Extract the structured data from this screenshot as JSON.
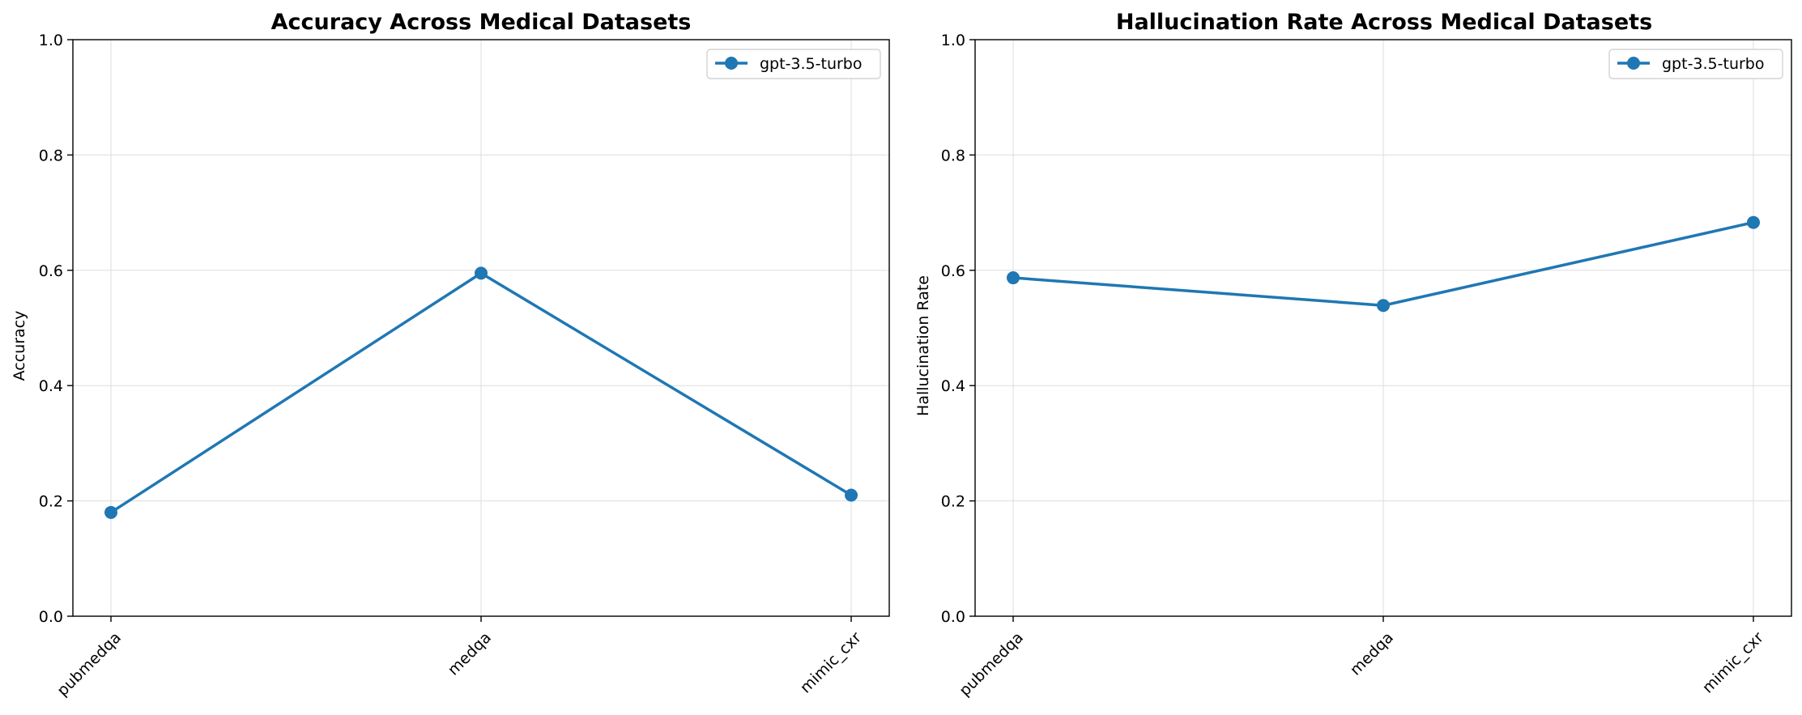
{
  "chart_data": [
    {
      "type": "line",
      "title": "Accuracy Across Medical Datasets",
      "xlabel": "",
      "ylabel": "Accuracy",
      "categories": [
        "pubmedqa",
        "medqa",
        "mimic_cxr"
      ],
      "series": [
        {
          "name": "gpt-3.5-turbo",
          "values": [
            0.18,
            0.595,
            0.21
          ],
          "color": "#1f77b4"
        }
      ],
      "ylim": [
        0,
        1
      ],
      "yticks": [
        "0.0",
        "0.2",
        "0.4",
        "0.6",
        "0.8",
        "1.0"
      ],
      "grid": true,
      "legend": "top-right"
    },
    {
      "type": "line",
      "title": "Hallucination Rate Across Medical Datasets",
      "xlabel": "",
      "ylabel": "Hallucination Rate",
      "categories": [
        "pubmedqa",
        "medqa",
        "mimic_cxr"
      ],
      "series": [
        {
          "name": "gpt-3.5-turbo",
          "values": [
            0.587,
            0.539,
            0.683
          ],
          "color": "#1f77b4"
        }
      ],
      "ylim": [
        0,
        1
      ],
      "yticks": [
        "0.0",
        "0.2",
        "0.4",
        "0.6",
        "0.8",
        "1.0"
      ],
      "grid": true,
      "legend": "top-right"
    }
  ]
}
